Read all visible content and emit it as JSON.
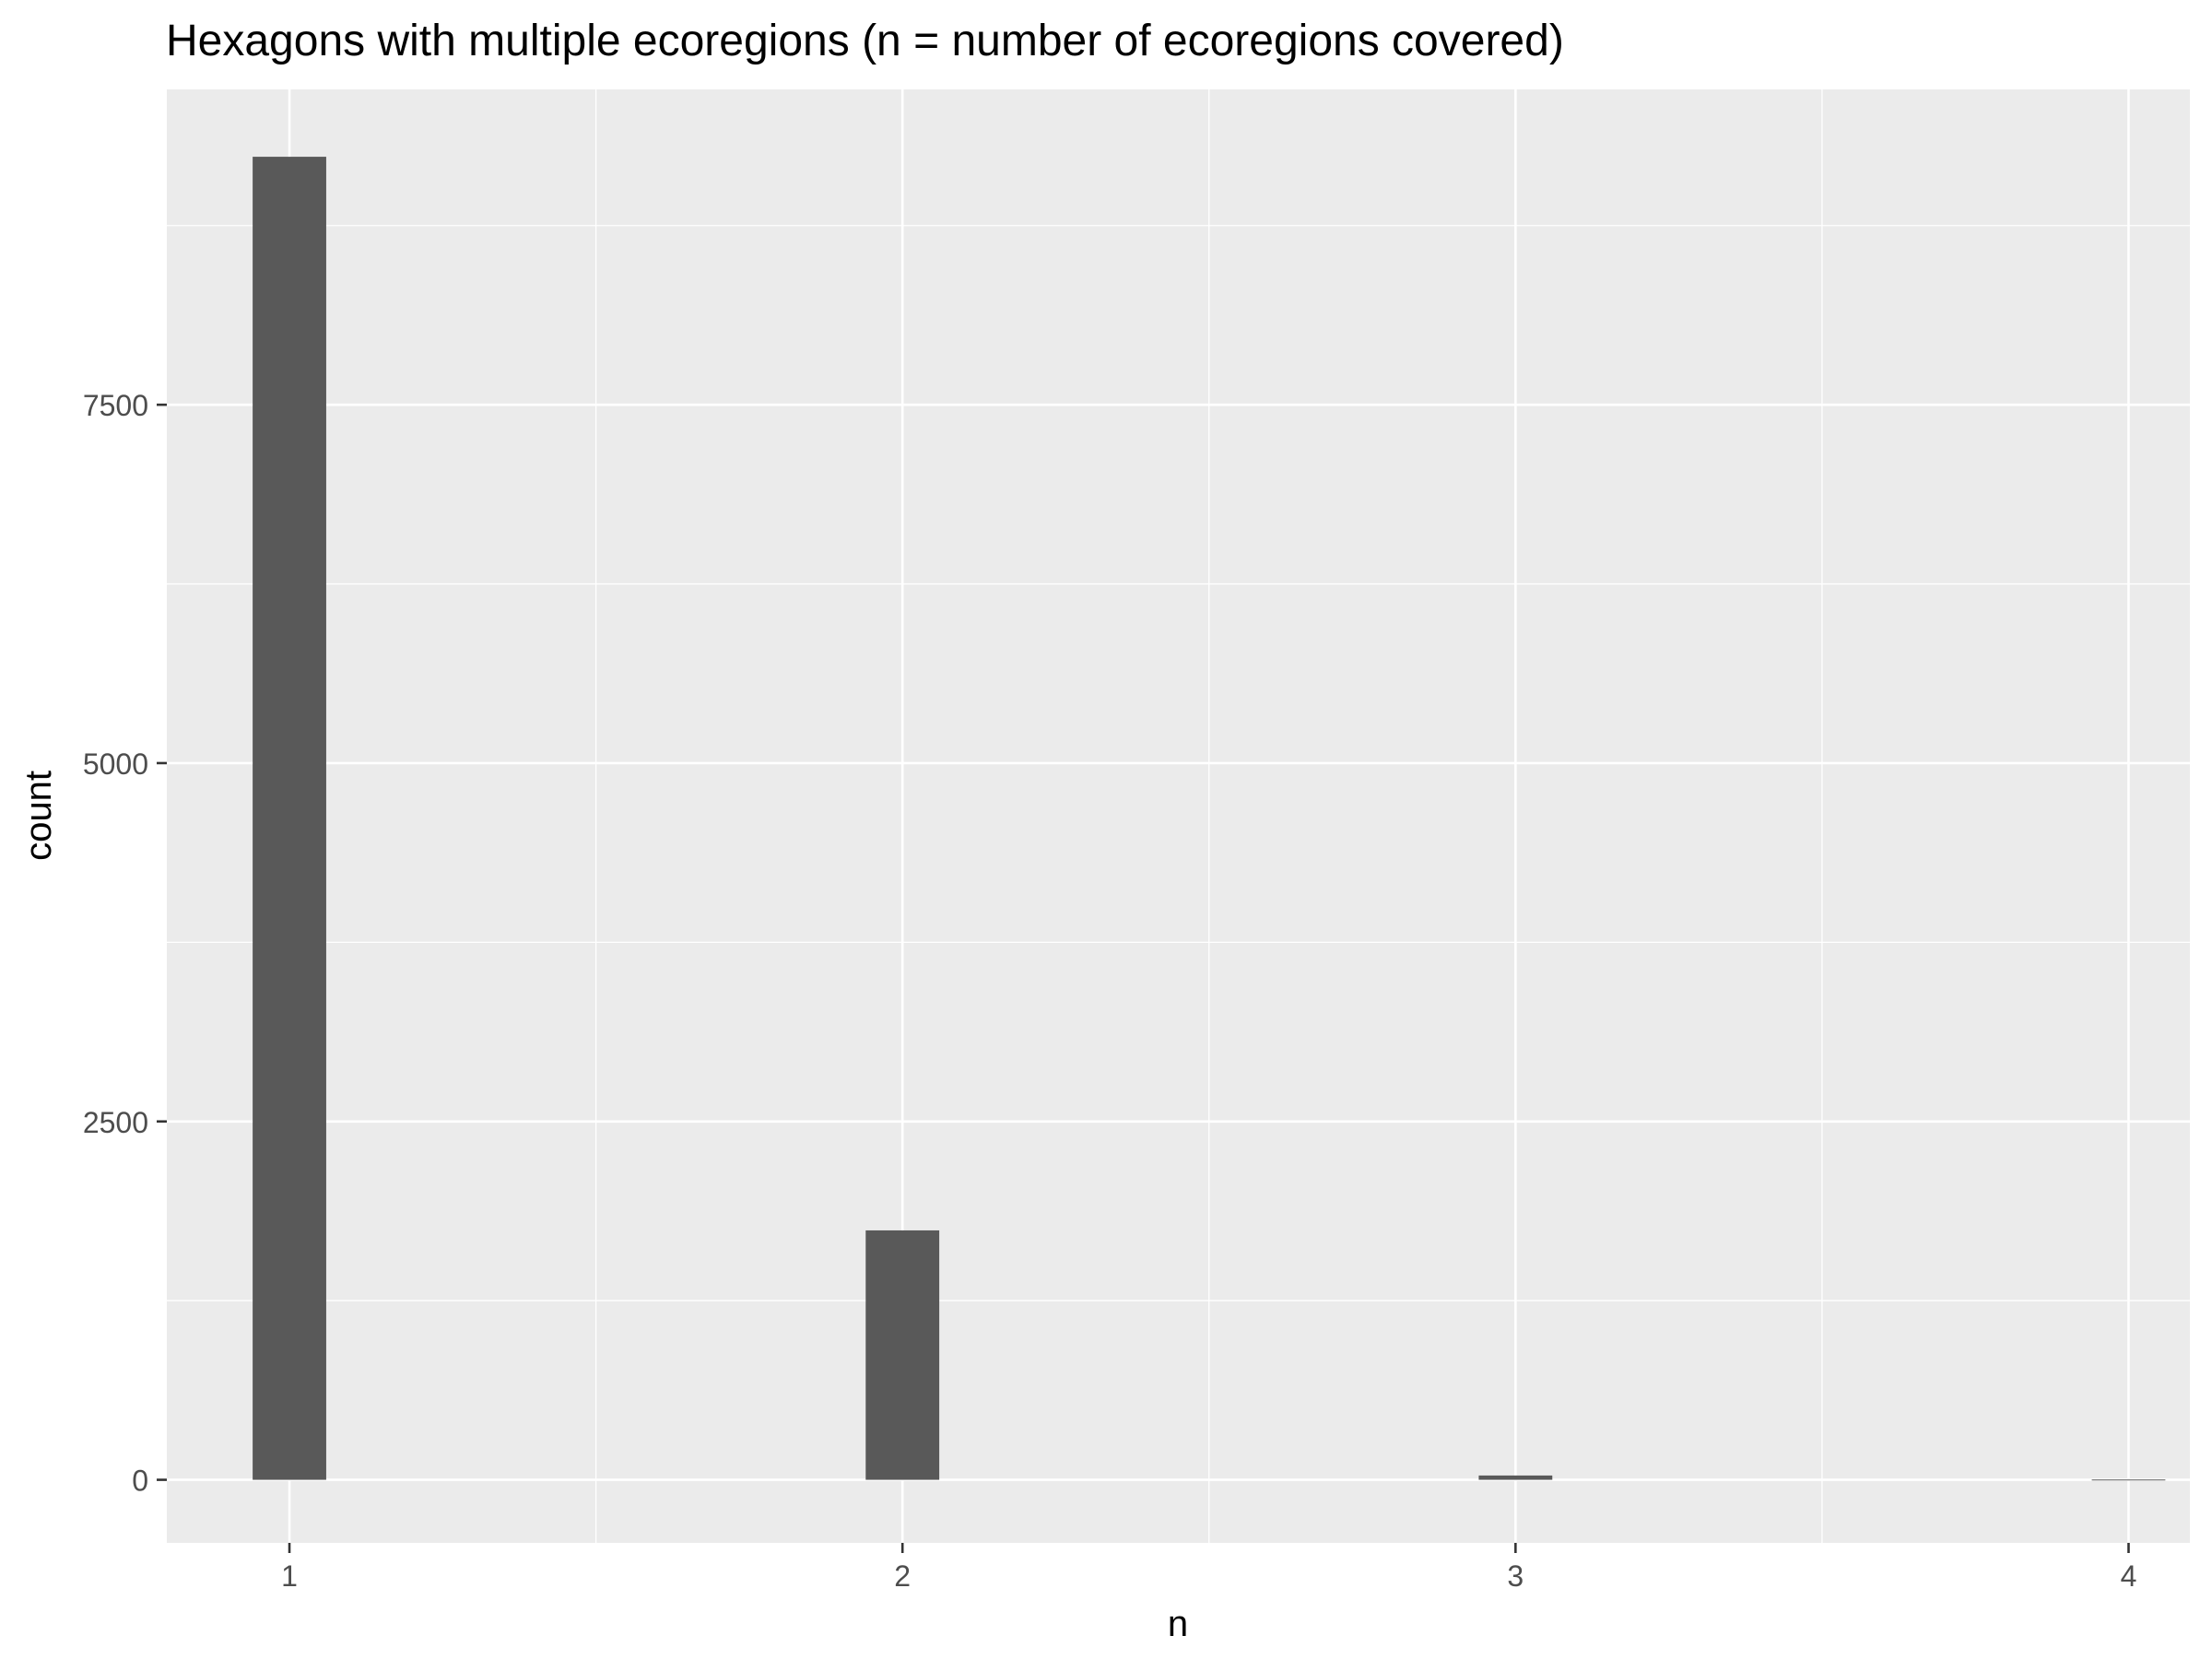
{
  "chart_data": {
    "type": "bar",
    "title": "Hexagons with multiple ecoregions (n = number of ecoregions covered)",
    "xlabel": "n",
    "ylabel": "count",
    "categories": [
      "1",
      "2",
      "3",
      "4"
    ],
    "x": [
      1,
      2,
      3,
      4
    ],
    "values": [
      9230,
      1740,
      30,
      2
    ],
    "xlim": [
      0.8,
      4.1
    ],
    "ylim": [
      -440,
      9700
    ],
    "yticks": [
      0,
      2500,
      5000,
      7500
    ],
    "ytick_labels": [
      "0",
      "2500",
      "5000",
      "7500"
    ],
    "xticks": [
      1,
      2,
      3,
      4
    ],
    "xtick_labels": [
      "1",
      "2",
      "3",
      "4"
    ],
    "grid": true,
    "legend": "none",
    "colors": {
      "panel_background": "#EBEBEB",
      "grid_line": "#FFFFFF",
      "bar_fill": "#595959",
      "axis_text": "#4D4D4D",
      "tick_mark": "#333333",
      "title_text": "#000000"
    }
  }
}
